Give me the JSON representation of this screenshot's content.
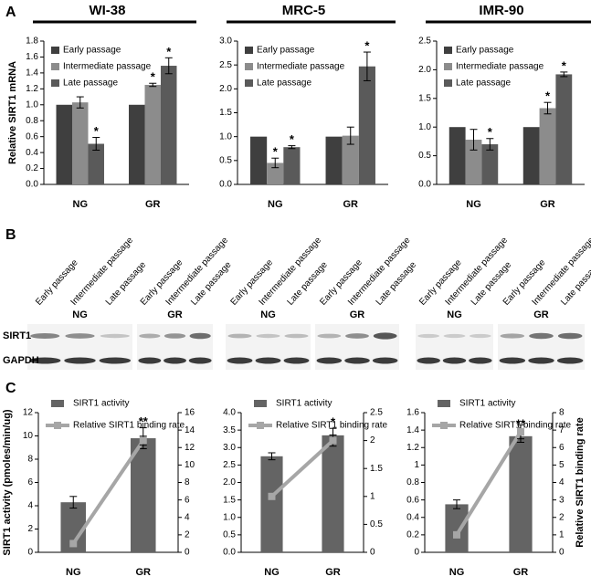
{
  "panel_labels": [
    "A",
    "B",
    "C"
  ],
  "blot": {
    "lanes": [
      "Early passage",
      "Intermediate passage",
      "Late passage",
      "Early passage",
      "Intermediate passage",
      "Late passage",
      "Early passage",
      "Intermediate passage",
      "Late passage",
      "Early passage",
      "Intermediate passage",
      "Late passage",
      "Early passage",
      "Intermediate passage",
      "Late passage",
      "Early passage",
      "Intermediate passage",
      "Late passage"
    ],
    "groups": [
      "NG",
      "GR",
      "NG",
      "GR",
      "NG",
      "GR"
    ],
    "rows": [
      "SIRT1",
      "GAPDH"
    ]
  },
  "chart_data": [
    {
      "type": "bar",
      "title": "WI-38",
      "y_label": "Relative SIRT1 mRNA",
      "legend": "upper left",
      "categories": [
        "NG",
        "GR"
      ],
      "series": [
        {
          "name": "Early passage",
          "color": "#3f3f3f",
          "values": [
            1.0,
            1.0
          ],
          "errors": [
            null,
            null
          ],
          "significance": [
            null,
            null
          ]
        },
        {
          "name": "Intermediate passage",
          "color": "#8c8c8c",
          "values": [
            1.03,
            1.25
          ],
          "errors": [
            0.07,
            0.02
          ],
          "significance": [
            null,
            "*"
          ]
        },
        {
          "name": "Late passage",
          "color": "#5a5a5a",
          "values": [
            0.51,
            1.49
          ],
          "errors": [
            0.08,
            0.1
          ],
          "significance": [
            "*",
            "*"
          ]
        }
      ],
      "ylim": [
        0,
        1.8
      ],
      "yticks": [
        {
          "value": 0,
          "label": "0.0"
        },
        0.2,
        0.4,
        0.6,
        0.8,
        {
          "value": 1,
          "label": "1.0"
        },
        1.2,
        1.4,
        1.6,
        1.8
      ]
    },
    {
      "type": "bar",
      "title": "MRC-5",
      "legend": "upper left",
      "categories": [
        "NG",
        "GR"
      ],
      "series": [
        {
          "name": "Early passage",
          "color": "#3f3f3f",
          "values": [
            1.0,
            1.0
          ],
          "errors": [
            null,
            null
          ],
          "significance": [
            null,
            null
          ]
        },
        {
          "name": "Intermediate passage",
          "color": "#8c8c8c",
          "values": [
            0.45,
            1.02
          ],
          "errors": [
            0.1,
            0.18
          ],
          "significance": [
            "*",
            null
          ]
        },
        {
          "name": "Late passage",
          "color": "#5a5a5a",
          "values": [
            0.78,
            2.47
          ],
          "errors": [
            0.03,
            0.3
          ],
          "significance": [
            "*",
            "*"
          ]
        }
      ],
      "ylim": [
        0,
        3
      ],
      "yticks": [
        {
          "value": 0,
          "label": "0.0"
        },
        0.5,
        {
          "value": 1,
          "label": "1.0"
        },
        1.5,
        {
          "value": 2,
          "label": "2.0"
        },
        2.5,
        {
          "value": 3,
          "label": "3.0"
        }
      ]
    },
    {
      "type": "bar",
      "title": "IMR-90",
      "legend": "upper left",
      "categories": [
        "NG",
        "GR"
      ],
      "series": [
        {
          "name": "Early passage",
          "color": "#3f3f3f",
          "values": [
            1.0,
            1.0
          ],
          "errors": [
            null,
            null
          ],
          "significance": [
            null,
            null
          ]
        },
        {
          "name": "Intermediate passage",
          "color": "#8c8c8c",
          "values": [
            0.78,
            1.33
          ],
          "errors": [
            0.18,
            0.1
          ],
          "significance": [
            null,
            "*"
          ]
        },
        {
          "name": "Late passage",
          "color": "#5a5a5a",
          "values": [
            0.7,
            1.92
          ],
          "errors": [
            0.1,
            0.04
          ],
          "significance": [
            "*",
            "*"
          ]
        }
      ],
      "ylim": [
        0,
        2.5
      ],
      "yticks": [
        {
          "value": 0,
          "label": "0.0"
        },
        0.5,
        {
          "value": 1,
          "label": "1.0"
        },
        1.5,
        {
          "value": 2,
          "label": "2.0"
        },
        2.5
      ]
    },
    {
      "type": "combo",
      "y_label": "SIRT1 activity (pmoles/min/ug)",
      "legend": "upper left",
      "categories": [
        "NG",
        "GR"
      ],
      "series": [
        {
          "name": "SIRT1 activity",
          "type": "bar",
          "color": "#646464",
          "values": [
            4.3,
            9.8
          ],
          "errors": [
            0.5,
            0.9
          ],
          "significance": [
            null,
            "**"
          ]
        },
        {
          "name": "Relative SIRT1 binding rate",
          "type": "line",
          "axis": "y2",
          "color": "#a6a6a6",
          "values": [
            1,
            12.8
          ],
          "errors": [
            null,
            0.5
          ]
        }
      ],
      "ylim": [
        0,
        12
      ],
      "yticks": [
        0,
        2,
        4,
        6,
        8,
        10,
        12
      ],
      "y2lim": [
        0,
        16
      ],
      "y2ticks": [
        0,
        2,
        4,
        6,
        8,
        10,
        12,
        14,
        16
      ]
    },
    {
      "type": "combo",
      "legend": "upper left",
      "categories": [
        "NG",
        "GR"
      ],
      "series": [
        {
          "name": "SIRT1 activity",
          "type": "bar",
          "color": "#646464",
          "values": [
            2.75,
            3.35
          ],
          "errors": [
            0.1,
            0.2
          ],
          "significance": [
            null,
            "*"
          ]
        },
        {
          "name": "Relative SIRT1 binding rate",
          "type": "line",
          "axis": "y2",
          "color": "#a6a6a6",
          "values": [
            1,
            2
          ],
          "errors": [
            null,
            0.1
          ]
        }
      ],
      "ylim": [
        0,
        4
      ],
      "yticks": [
        {
          "value": 0,
          "label": "0.0"
        },
        0.5,
        {
          "value": 1,
          "label": "1.0"
        },
        1.5,
        {
          "value": 2,
          "label": "2.0"
        },
        2.5,
        {
          "value": 3,
          "label": "3.0"
        },
        3.5,
        {
          "value": 4,
          "label": "4.0"
        }
      ],
      "y2lim": [
        0,
        2.5
      ],
      "y2ticks": [
        0,
        0.5,
        1,
        1.5,
        2,
        2.5
      ]
    },
    {
      "type": "combo",
      "y2_label": "Relative SIRT1 binding rate",
      "legend": "upper left",
      "categories": [
        "NG",
        "GR"
      ],
      "series": [
        {
          "name": "SIRT1 activity",
          "type": "bar",
          "color": "#646464",
          "values": [
            0.55,
            1.33
          ],
          "errors": [
            0.05,
            0.07
          ],
          "significance": [
            null,
            "**"
          ]
        },
        {
          "name": "Relative SIRT1 binding rate",
          "type": "line",
          "axis": "y2",
          "color": "#a6a6a6",
          "values": [
            1,
            6.9
          ],
          "errors": [
            null,
            0.4
          ]
        }
      ],
      "ylim": [
        0,
        1.6
      ],
      "yticks": [
        0,
        0.2,
        0.4,
        0.6,
        0.8,
        1,
        1.2,
        1.4,
        1.6
      ],
      "y2lim": [
        0,
        8
      ],
      "y2ticks": [
        0,
        1,
        2,
        3,
        4,
        5,
        6,
        7,
        8
      ]
    }
  ]
}
